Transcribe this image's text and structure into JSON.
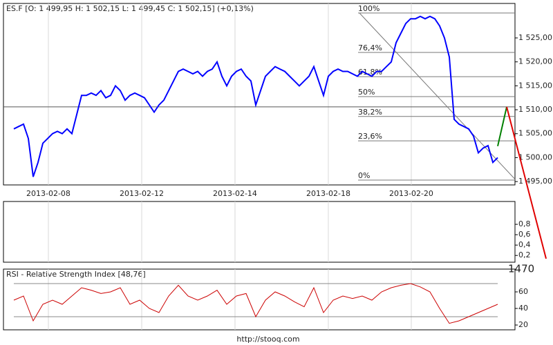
{
  "footer": "http://stooq.com",
  "chart_data": [
    {
      "type": "line",
      "title": "ES.F [O: 1 499,95  H: 1 502,15  L: 1 499,45  C: 1 502,15] (+0,13%)",
      "color": "#0000ff",
      "xlim": [
        -2.14,
        103.57
      ],
      "xticks": [
        {
          "value": 7.14,
          "label": "2013-02-08"
        },
        {
          "value": 26.43,
          "label": "2013-02-12"
        },
        {
          "value": 45.71,
          "label": "2013-02-14"
        },
        {
          "value": 65,
          "label": "2013-02-18"
        },
        {
          "value": 82.14,
          "label": "2013-02-20"
        }
      ],
      "ylim": [
        1494.3,
        1532.2
      ],
      "yticks": [
        {
          "value": 1495,
          "label": "1 495,00"
        },
        {
          "value": 1500,
          "label": "1 500,00"
        },
        {
          "value": 1505,
          "label": "1 505,00"
        },
        {
          "value": 1510,
          "label": "1 510,00"
        },
        {
          "value": 1515,
          "label": "1 515,00"
        },
        {
          "value": 1520,
          "label": "1 520,00"
        },
        {
          "value": 1525,
          "label": "1 525,00"
        }
      ],
      "values": [
        1506,
        1506.5,
        1507,
        1504,
        1496,
        1499,
        1503,
        1504,
        1505,
        1505.5,
        1505,
        1506,
        1505,
        1509,
        1513,
        1513,
        1513.5,
        1513,
        1514,
        1512.5,
        1513,
        1515,
        1514,
        1512,
        1513,
        1513.5,
        1513,
        1512.5,
        1511,
        1509.5,
        1511,
        1512,
        1514,
        1516,
        1518,
        1518.5,
        1518,
        1517.5,
        1518,
        1517,
        1518,
        1518.5,
        1520,
        1517,
        1515,
        1517,
        1518,
        1518.5,
        1517,
        1516,
        1511,
        1514,
        1517,
        1518,
        1519,
        1518.5,
        1518,
        1517,
        1516,
        1515,
        1516,
        1517,
        1519,
        1516,
        1513,
        1517,
        1518,
        1518.5,
        1518,
        1518,
        1517.5,
        1517,
        1518,
        1517.5,
        1517,
        1518,
        1518,
        1519,
        1520,
        1524,
        1526,
        1528,
        1529,
        1529,
        1529.5,
        1529,
        1529.5,
        1529,
        1527.5,
        1525,
        1521,
        1508,
        1507,
        1506.5,
        1506,
        1504.5,
        1501,
        1502,
        1502.5,
        1499,
        1500
      ],
      "hline": 1510.6,
      "fib_trend": {
        "x": [
          71.43,
          103.57
        ],
        "values": [
          1530.2,
          1495.5
        ]
      },
      "fib_levels": [
        {
          "label": "100%",
          "value": 1530.2
        },
        {
          "label": "76,4%",
          "value": 1521.96
        },
        {
          "label": "61,8%",
          "value": 1516.9
        },
        {
          "label": "50%",
          "value": 1512.75
        },
        {
          "label": "38,2%",
          "value": 1508.6
        },
        {
          "label": "23,6%",
          "value": 1503.5
        },
        {
          "label": "0%",
          "value": 1495.3
        }
      ],
      "trend_lines": [
        {
          "color": "#008000",
          "x": [
            100,
            101.86
          ],
          "values": [
            1502.4,
            1510.6
          ]
        },
        {
          "color": "#e00000",
          "x": [
            101.86,
            110
          ],
          "values": [
            1510.6,
            1478.9
          ],
          "label": "1470"
        }
      ]
    },
    {
      "type": "line",
      "ylim": [
        0.07,
        1.24
      ],
      "yticks": [
        {
          "value": 0.2,
          "label": "0,2"
        },
        {
          "value": 0.4,
          "label": "0,4"
        },
        {
          "value": 0.6,
          "label": "0,6"
        },
        {
          "value": 0.8,
          "label": "0,8"
        }
      ]
    },
    {
      "type": "line",
      "title": "RSI - Relative Strength Index [48,76]",
      "color": "#cc0000",
      "ylim": [
        14.2,
        87.5
      ],
      "yticks": [
        20,
        40,
        60
      ],
      "levels": [
        30,
        70
      ],
      "values": [
        50,
        55,
        25,
        45,
        50,
        45,
        55,
        65,
        62,
        58,
        60,
        65,
        45,
        50,
        40,
        35,
        55,
        68,
        55,
        50,
        55,
        62,
        45,
        55,
        58,
        30,
        50,
        60,
        55,
        48,
        42,
        65,
        35,
        50,
        55,
        52,
        55,
        50,
        60,
        65,
        68,
        70,
        66,
        60,
        40,
        22,
        25,
        30,
        35,
        40,
        45
      ]
    }
  ]
}
